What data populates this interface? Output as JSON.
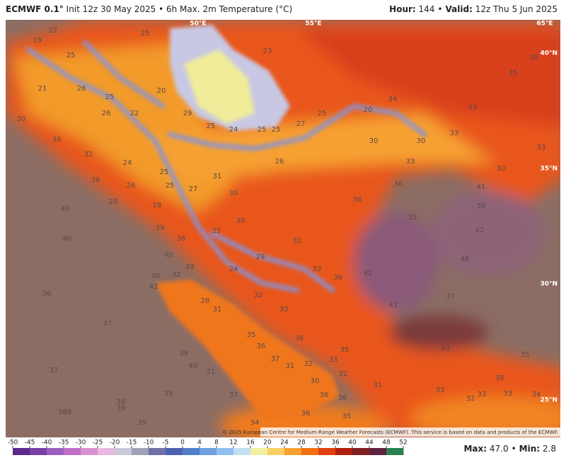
{
  "header": {
    "model": "ECMWF 0.1°",
    "description": "Init 12z 30 May 2025 • 6h Max. 2m Temperature (°C)",
    "hour_label": "Hour:",
    "hour": "144",
    "separator": "•",
    "valid_label": "Valid:",
    "valid": "12z Thu 5 Jun 2025"
  },
  "map": {
    "coordinate_labels": [
      "50°E",
      "55°E",
      "65°E",
      "40°N",
      "35°N",
      "30°N",
      "25°N"
    ],
    "temperature_labels": [
      19,
      22,
      25,
      25,
      21,
      26,
      25,
      26,
      20,
      22,
      29,
      25,
      24,
      25,
      25,
      27,
      25,
      20,
      34,
      33,
      35,
      38,
      23,
      30,
      36,
      32,
      24,
      25,
      25,
      27,
      26,
      28,
      28,
      36,
      40,
      40,
      39,
      36,
      25,
      30,
      31,
      30,
      26,
      30,
      30,
      33,
      33,
      33,
      30,
      36,
      36,
      35,
      41,
      39,
      42,
      46,
      42,
      36,
      33,
      29,
      24,
      32,
      40,
      39,
      32,
      40,
      42,
      28,
      31,
      32,
      33,
      37,
      41,
      36,
      37,
      35,
      36,
      36,
      35,
      43,
      35,
      38,
      40,
      31,
      37,
      31,
      32,
      33,
      32,
      30,
      37,
      38,
      31,
      33,
      33,
      33,
      34,
      32,
      39,
      37,
      36,
      36,
      38,
      39,
      36,
      36,
      36,
      35,
      34,
      39
    ],
    "copyright": "© 2025 European Centre for Medium-Range Weather Forecasts (ECMWF). This service is based on data and products of the ECMWF."
  },
  "colorbar": {
    "ticks": [
      -50,
      -45,
      -40,
      -35,
      -30,
      -25,
      -20,
      -15,
      -10,
      -5,
      0,
      4,
      8,
      12,
      16,
      20,
      24,
      28,
      32,
      36,
      40,
      44,
      48,
      52
    ],
    "colors": [
      "#5a2a8a",
      "#7a3fa6",
      "#9a5fc0",
      "#c070c8",
      "#d890d0",
      "#e8b8e0",
      "#c8c8d8",
      "#a0a0b8",
      "#7070a8",
      "#5060b0",
      "#5080c8",
      "#70a0e0",
      "#90c0f0",
      "#c0e0f0",
      "#f0f0a0",
      "#f8d060",
      "#f8a030",
      "#f07010",
      "#e04010",
      "#b02010",
      "#802020",
      "#602040",
      "#2a8050"
    ]
  },
  "footer": {
    "max_label": "Max:",
    "max_value": "47.0",
    "separator": "•",
    "min_label": "Min:",
    "min_value": "2.8"
  }
}
